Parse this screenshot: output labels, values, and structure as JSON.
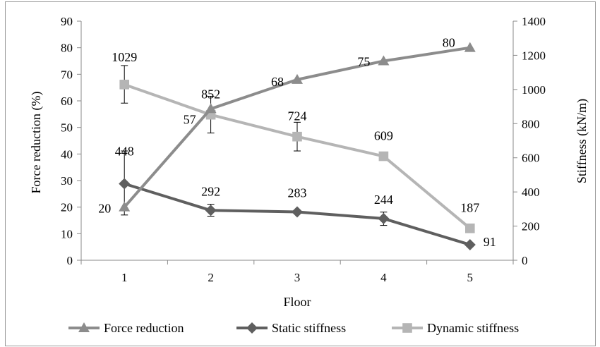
{
  "chart_data": {
    "type": "line",
    "xlabel": "Floor",
    "ylabel_left": "Force reduction (%)",
    "ylabel_right": "Stiffness (kN/m)",
    "categories": [
      "1",
      "2",
      "3",
      "4",
      "5"
    ],
    "ylim_left": [
      0,
      90
    ],
    "yticks_left": [
      0,
      10,
      20,
      30,
      40,
      50,
      60,
      70,
      80,
      90
    ],
    "ylim_right": [
      0,
      1400
    ],
    "yticks_right": [
      0,
      200,
      400,
      600,
      800,
      1000,
      1200,
      1400
    ],
    "grid": false,
    "legend_position": "bottom",
    "series": [
      {
        "name": "Force reduction",
        "axis": "left",
        "marker": "triangle",
        "color": "#8c8c8c",
        "values": [
          20,
          57,
          68,
          75,
          80
        ],
        "labels": [
          "20",
          "57",
          "68",
          "75",
          "80"
        ]
      },
      {
        "name": "Static stiffness",
        "axis": "right",
        "marker": "diamond",
        "color": "#5f5f5f",
        "values": [
          448,
          292,
          283,
          244,
          91
        ],
        "labels": [
          "448",
          "292",
          "283",
          "244",
          "91"
        ],
        "error_bars": [
          [
            265,
            640
          ],
          [
            258,
            328
          ],
          null,
          [
            204,
            282
          ],
          null
        ]
      },
      {
        "name": "Dynamic stiffness",
        "axis": "right",
        "marker": "square",
        "color": "#b5b5b5",
        "values": [
          1029,
          852,
          724,
          609,
          187
        ],
        "labels": [
          "1029",
          "852",
          "724",
          "609",
          "187"
        ],
        "error_bars": [
          [
            920,
            1140
          ],
          [
            745,
            960
          ],
          [
            640,
            808
          ],
          null,
          null
        ]
      }
    ]
  }
}
